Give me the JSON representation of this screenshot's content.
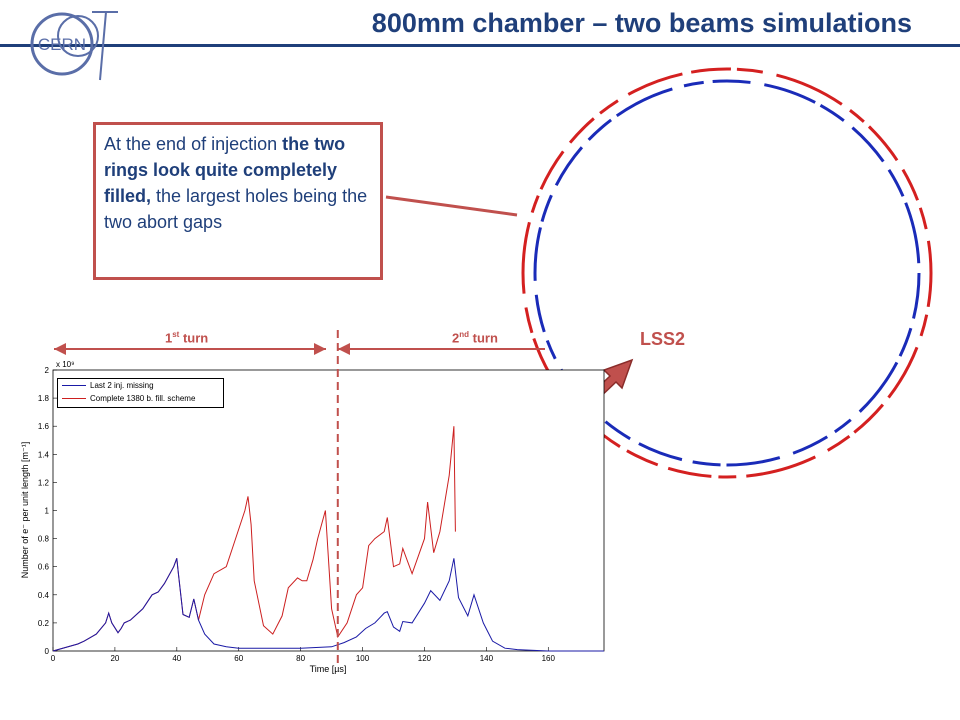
{
  "header": {
    "title": "800mm chamber – two beams simulations",
    "logo_text": "CERN"
  },
  "callout": {
    "t1": "At the end of injection ",
    "t2": "the two rings look quite completely filled,",
    "t3": " the largest holes being the two abort gaps"
  },
  "ring_label": "LSS2",
  "turns": {
    "first": {
      "num": "1",
      "sup": "st",
      "word": " turn"
    },
    "second": {
      "num": "2",
      "sup": "nd",
      "word": " turn"
    }
  },
  "colors": {
    "title": "#1f3f7a",
    "accent": "#c0504d",
    "blue_series": "#1a1aa6",
    "red_series": "#cc1f1f"
  },
  "chart_data": {
    "type": "line",
    "xlabel": "Time [µs]",
    "ylabel": "Number of e⁻ per unit length [m⁻¹]",
    "y_multiplier": "x 10⁹",
    "xlim": [
      0,
      178
    ],
    "ylim": [
      0,
      2
    ],
    "xticks": [
      0,
      20,
      40,
      60,
      80,
      100,
      120,
      140,
      160
    ],
    "yticks": [
      0,
      0.2,
      0.4,
      0.6,
      0.8,
      1,
      1.2,
      1.4,
      1.6,
      1.8,
      2
    ],
    "vline_x": 92,
    "series": [
      {
        "name": "Last 2 inj. missing",
        "color": "#1a1aa6",
        "x": [
          0,
          8,
          10,
          14,
          17,
          18,
          19,
          21,
          22,
          23,
          25,
          29,
          32,
          34,
          36,
          39,
          40,
          40.5,
          42,
          44,
          45.5,
          47,
          49,
          52,
          56,
          60,
          65,
          70,
          80,
          90,
          94,
          98,
          101,
          104,
          107,
          108,
          110,
          112,
          113,
          116,
          120,
          122,
          125,
          128,
          129.5,
          131,
          134,
          136,
          139,
          142,
          146,
          150,
          160,
          178
        ],
        "y": [
          0,
          0.05,
          0.07,
          0.12,
          0.2,
          0.27,
          0.2,
          0.13,
          0.16,
          0.2,
          0.22,
          0.3,
          0.4,
          0.42,
          0.48,
          0.6,
          0.66,
          0.55,
          0.26,
          0.24,
          0.37,
          0.22,
          0.12,
          0.05,
          0.03,
          0.02,
          0.02,
          0.02,
          0.02,
          0.03,
          0.06,
          0.1,
          0.16,
          0.2,
          0.27,
          0.28,
          0.17,
          0.14,
          0.21,
          0.2,
          0.34,
          0.43,
          0.36,
          0.5,
          0.66,
          0.38,
          0.25,
          0.4,
          0.2,
          0.07,
          0.02,
          0.01,
          0,
          0
        ]
      },
      {
        "name": "Complete 1380 b. fill. scheme",
        "color": "#cc1f1f",
        "x": [
          0,
          8,
          10,
          14,
          17,
          18,
          19,
          21,
          22,
          23,
          25,
          29,
          32,
          34,
          36,
          39,
          40,
          40.5,
          42,
          44,
          45.5,
          47,
          49,
          52,
          56,
          59,
          62,
          63,
          64,
          65,
          68,
          71,
          74,
          76,
          79,
          80.5,
          82,
          84,
          85.5,
          88,
          90,
          92,
          95,
          98,
          100,
          102,
          104,
          107,
          108,
          110,
          112,
          113,
          116,
          120,
          121,
          123,
          125,
          128,
          129.5,
          130
        ],
        "y": [
          0,
          0.05,
          0.07,
          0.12,
          0.2,
          0.27,
          0.2,
          0.13,
          0.16,
          0.2,
          0.22,
          0.3,
          0.4,
          0.42,
          0.48,
          0.6,
          0.66,
          0.55,
          0.26,
          0.24,
          0.37,
          0.22,
          0.4,
          0.55,
          0.6,
          0.8,
          1.0,
          1.1,
          0.9,
          0.5,
          0.18,
          0.12,
          0.25,
          0.45,
          0.52,
          0.5,
          0.5,
          0.65,
          0.8,
          1.0,
          0.3,
          0.1,
          0.2,
          0.4,
          0.45,
          0.75,
          0.8,
          0.85,
          0.95,
          0.6,
          0.62,
          0.73,
          0.55,
          0.8,
          1.06,
          0.7,
          0.85,
          1.25,
          1.6,
          0.85
        ]
      }
    ]
  }
}
